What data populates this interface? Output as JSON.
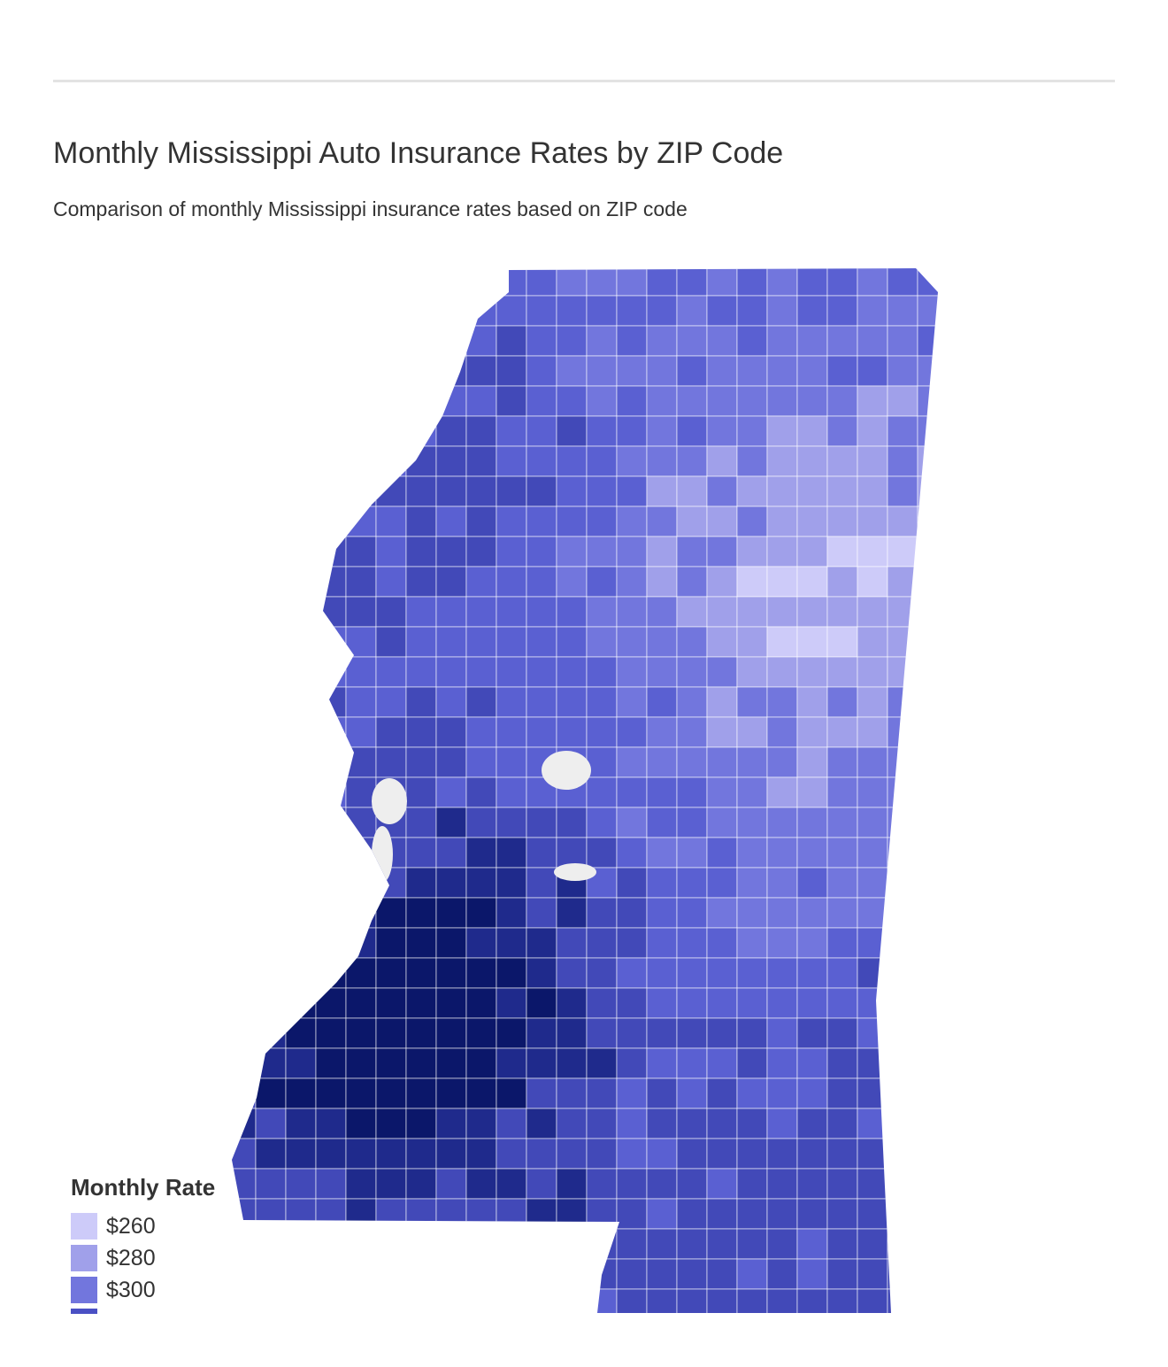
{
  "title": "Monthly Mississippi Auto Insurance Rates by ZIP Code",
  "subtitle": "Comparison of monthly Mississippi insurance rates based on ZIP code",
  "legend": {
    "title": "Monthly Rate",
    "items": [
      {
        "label": "$260",
        "color": "#cdcbf9"
      },
      {
        "label": "$280",
        "color": "#a0a0ea"
      },
      {
        "label": "$300",
        "color": "#7276dd"
      },
      {
        "label": "",
        "color": "#4a50c4"
      }
    ]
  },
  "colors": {
    "scale": [
      "#cdcbf9",
      "#a0a0ea",
      "#7276dd",
      "#5a60d2",
      "#4249b8",
      "#1f2a8c",
      "#0b176a"
    ],
    "no_data": "#eeeeee"
  }
}
